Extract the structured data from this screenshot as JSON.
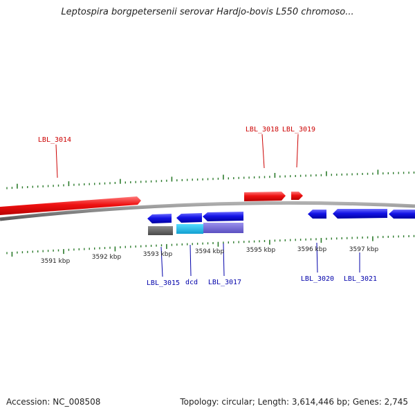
{
  "title": "Leptospira borgpetersenii serovar Hardjo-bovis L550 chromoso...",
  "footer": {
    "accession": "Accession: NC_008508",
    "summary": "Topology: circular; Length: 3,614,446 bp; Genes: 2,745"
  },
  "colors": {
    "forward": "#ee1111",
    "reverse": "#1010e0",
    "forward_label": "#cc0000",
    "reverse_label": "#0000aa",
    "tick": "#2a7a2a",
    "backbone": "#808080",
    "block_gray": "#666666",
    "block_cyan": "#22bbee",
    "block_purple": "#7b6fd6"
  },
  "scale_labels": [
    "3591 kbp",
    "3592 kbp",
    "3593 kbp",
    "3594 kbp",
    "3595 kbp",
    "3596 kbp",
    "3597 kbp"
  ],
  "genes_forward": [
    "LBL_3014",
    "LBL_3018",
    "LBL_3019"
  ],
  "genes_reverse": [
    "LBL_3015",
    "dcd",
    "LBL_3017",
    "LBL_3020",
    "LBL_3021"
  ]
}
